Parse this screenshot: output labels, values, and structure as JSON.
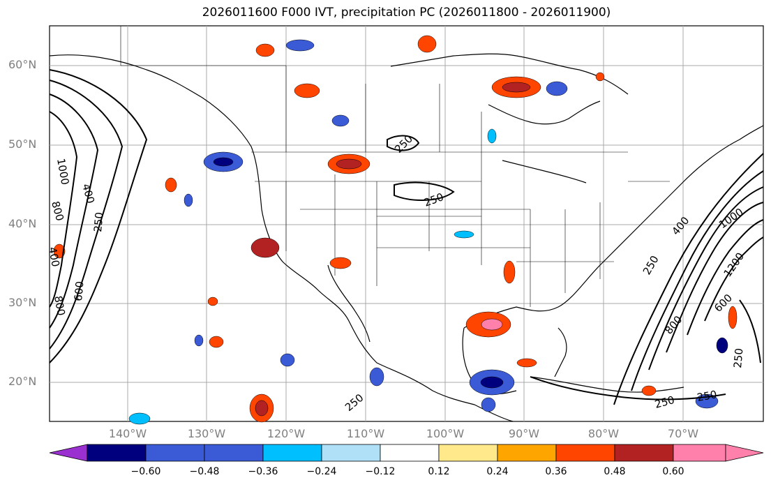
{
  "title": "2026011600 F000 IVT, precipitation PC (2026011800 - 2026011900)",
  "lat_labels": [
    "60°N",
    "50°N",
    "40°N",
    "30°N",
    "20°N"
  ],
  "lon_labels": [
    "140°W",
    "130°W",
    "120°W",
    "110°W",
    "100°W",
    "90°W",
    "80°W",
    "70°W"
  ],
  "colorbar": {
    "ticks": [
      "−0.60",
      "−0.48",
      "−0.36",
      "−0.24",
      "−0.12",
      "0.12",
      "0.24",
      "0.36",
      "0.48",
      "0.60"
    ],
    "colors": [
      "#9b30d0",
      "#00007f",
      "#3b5bd6",
      "#00bfff",
      "#b0e0f8",
      "#ffffff",
      "#ffe98a",
      "#ffa500",
      "#ff4500",
      "#b22222",
      "#ff80aa"
    ]
  },
  "contour_labels": [
    "1000",
    "400",
    "800",
    "400",
    "250",
    "600",
    "800",
    "250",
    "250",
    "250",
    "400",
    "1000",
    "250",
    "1200",
    "800",
    "600",
    "250",
    "250",
    "250"
  ]
}
